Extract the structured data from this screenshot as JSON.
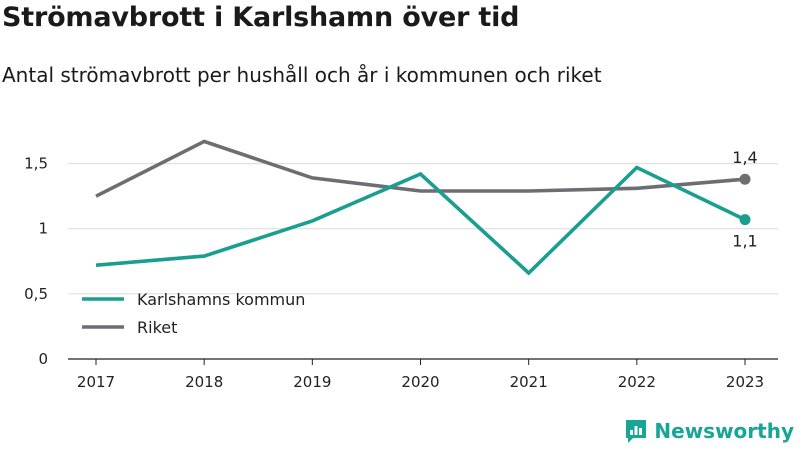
{
  "title": "Strömavbrott i Karlshamn över tid",
  "subtitle": "Antal strömavbrott per hushåll och år i kommunen och riket",
  "brand": {
    "name": "Newsworthy",
    "icon": "newsworthy-logo-icon",
    "color": "#17a596"
  },
  "chart_data": {
    "type": "line",
    "title": "Strömavbrott i Karlshamn över tid",
    "subtitle": "Antal strömavbrott per hushåll och år i kommunen och riket",
    "xlabel": "",
    "ylabel": "",
    "categories": [
      "2017",
      "2018",
      "2019",
      "2020",
      "2021",
      "2022",
      "2023"
    ],
    "y_ticks": [
      {
        "value": 0,
        "label": "0"
      },
      {
        "value": 0.5,
        "label": "0,5"
      },
      {
        "value": 1,
        "label": "1"
      },
      {
        "value": 1.5,
        "label": "1,5"
      }
    ],
    "ylim": [
      0,
      1.85
    ],
    "grid": true,
    "legend_position": "bottom-left",
    "series": [
      {
        "name": "Karlshamns kommun",
        "color": "#1a9e90",
        "values": [
          0.72,
          0.79,
          1.06,
          1.42,
          0.66,
          1.47,
          1.07
        ],
        "end_label": "1,1"
      },
      {
        "name": "Riket",
        "color": "#6e6d72",
        "values": [
          1.25,
          1.67,
          1.39,
          1.29,
          1.29,
          1.31,
          1.38
        ],
        "end_label": "1,4"
      }
    ]
  }
}
